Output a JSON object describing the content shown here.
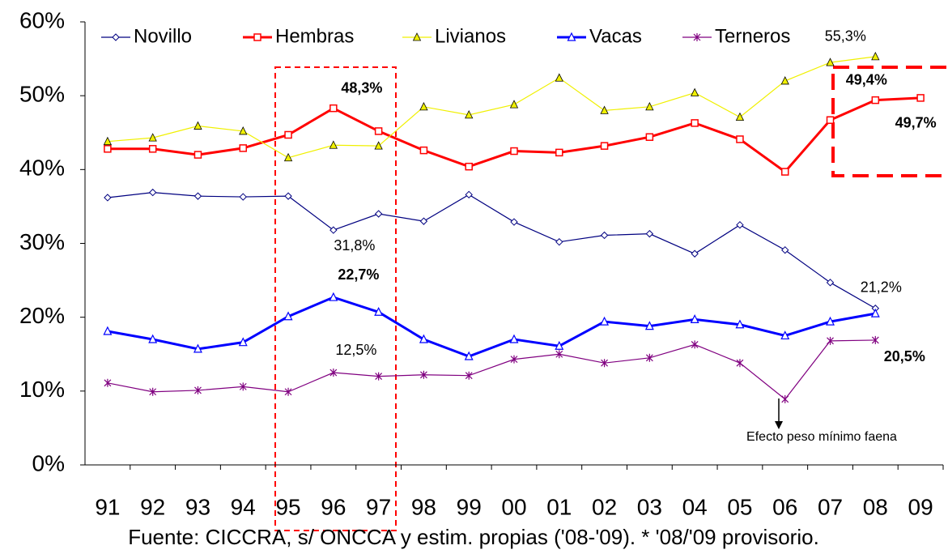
{
  "chart_data": {
    "type": "line",
    "categories": [
      "91",
      "92",
      "93",
      "94",
      "95",
      "96",
      "97",
      "98",
      "99",
      "00",
      "01",
      "02",
      "03",
      "04",
      "05",
      "06",
      "07",
      "08",
      "09"
    ],
    "ylim": [
      0,
      60
    ],
    "yticks": [
      {
        "value": 0,
        "label": "0%"
      },
      {
        "value": 10,
        "label": "10%"
      },
      {
        "value": 20,
        "label": "20%"
      },
      {
        "value": 30,
        "label": "30%"
      },
      {
        "value": 40,
        "label": "40%"
      },
      {
        "value": 50,
        "label": "50%"
      },
      {
        "value": 60,
        "label": "60%"
      }
    ],
    "series": [
      {
        "name": "Novillo",
        "color": "#000080",
        "marker": "diamond",
        "values": [
          36.2,
          36.9,
          36.4,
          36.3,
          36.4,
          31.8,
          34.0,
          33.0,
          36.6,
          32.9,
          30.2,
          31.1,
          31.3,
          28.6,
          32.5,
          29.1,
          24.7,
          21.2,
          null
        ],
        "value_labels": [
          null,
          null,
          null,
          null,
          null,
          "31,8%",
          null,
          null,
          null,
          null,
          null,
          null,
          null,
          null,
          null,
          null,
          null,
          "21,2%",
          null
        ]
      },
      {
        "name": "Hembras",
        "color": "#ff0000",
        "marker": "square",
        "values": [
          42.8,
          42.8,
          42.0,
          42.9,
          44.7,
          48.3,
          45.2,
          42.6,
          40.4,
          42.5,
          42.3,
          43.2,
          44.4,
          46.3,
          44.1,
          39.7,
          46.7,
          49.4,
          49.7
        ],
        "value_labels": [
          null,
          null,
          null,
          null,
          null,
          "48,3%",
          null,
          null,
          null,
          null,
          null,
          null,
          null,
          null,
          null,
          null,
          null,
          "49,4%",
          "49,7%"
        ]
      },
      {
        "name": "Livianos",
        "color": "#f0f000",
        "marker": "triangle-filled",
        "values": [
          43.8,
          44.3,
          45.9,
          45.2,
          41.6,
          43.3,
          43.2,
          48.5,
          47.4,
          48.8,
          52.4,
          48.0,
          48.5,
          50.4,
          47.1,
          52.0,
          54.5,
          55.3,
          null
        ],
        "value_labels": [
          null,
          null,
          null,
          null,
          null,
          null,
          null,
          null,
          null,
          null,
          null,
          null,
          null,
          null,
          null,
          null,
          null,
          "55,3%",
          null
        ]
      },
      {
        "name": "Vacas",
        "color": "#0000ff",
        "marker": "triangle",
        "values": [
          18.1,
          17.0,
          15.7,
          16.6,
          20.1,
          22.7,
          20.7,
          17.0,
          14.7,
          17.0,
          16.1,
          19.4,
          18.8,
          19.7,
          19.0,
          17.5,
          19.4,
          20.5,
          null
        ],
        "value_labels": [
          null,
          null,
          null,
          null,
          null,
          "22,7%",
          null,
          null,
          null,
          null,
          null,
          null,
          null,
          null,
          null,
          null,
          null,
          "20,5%",
          null
        ]
      },
      {
        "name": "Terneros",
        "color": "#800080",
        "marker": "asterisk",
        "values": [
          11.1,
          9.9,
          10.1,
          10.6,
          9.9,
          12.5,
          12.0,
          12.2,
          12.1,
          14.3,
          15.0,
          13.8,
          14.5,
          16.3,
          13.8,
          8.9,
          16.8,
          16.9,
          null
        ],
        "value_labels": [
          null,
          null,
          null,
          null,
          null,
          "12,5%",
          null,
          null,
          null,
          null,
          null,
          null,
          null,
          null,
          null,
          null,
          null,
          null,
          null
        ]
      }
    ],
    "annotation": "Efecto peso mínimo faena",
    "source": "Fuente: CICCRA, s/ ONCCA y estim. propias ('08-'09). * '08/'09 provisorio.",
    "legend": "top"
  }
}
